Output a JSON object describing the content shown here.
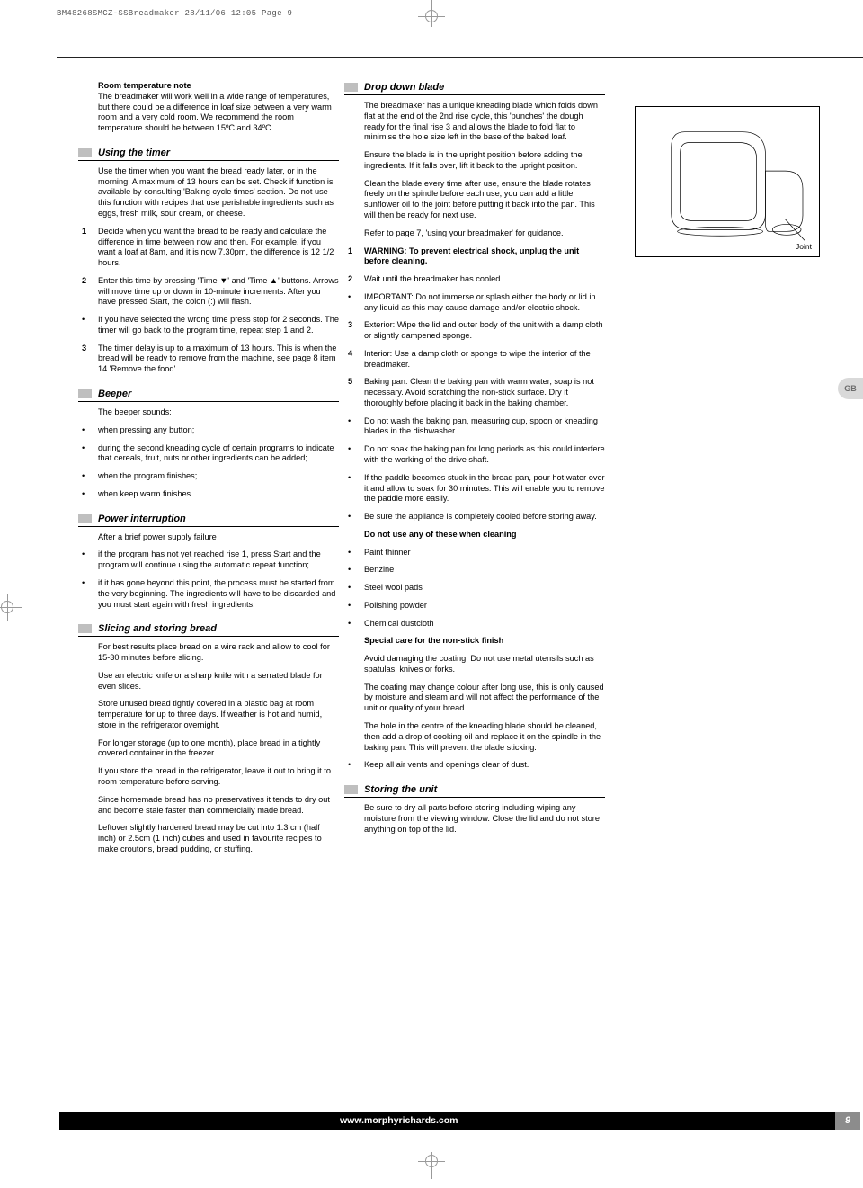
{
  "print_header": "BM48268SMCZ-SSBreadmaker  28/11/06  12:05  Page 9",
  "footer_url": "www.morphyrichards.com",
  "page_number": "9",
  "gb_tab": "GB",
  "diagram_label": "Joint",
  "col1": {
    "room_note_title": "Room temperature note",
    "room_note_body": "The breadmaker will work well in a wide range of temperatures, but there could be a difference in loaf size between a very warm room and a very cold room. We recommend the room temperature should be between 15ºC and 34ºC.",
    "sec_timer": "Using the timer",
    "timer_intro": "Use the timer when you want the bread ready later, or in the morning. A maximum of 13 hours can be set. Check if function is available by consulting 'Baking cycle times' section. Do not use this function with recipes that use perishable ingredients such as eggs, fresh milk, sour cream, or cheese.",
    "timer_items": [
      {
        "n": "1",
        "t": "Decide when you want the bread to be ready and calculate the difference in time between now and then. For example, if you want a loaf at 8am, and it is now 7.30pm, the difference is 12 1/2 hours."
      },
      {
        "n": "2",
        "t": "Enter this time by pressing 'Time ▼' and 'Time ▲' buttons. Arrows will move time up or down in 10-minute increments. After you have pressed Start, the colon (:) will flash."
      },
      {
        "n": "•",
        "t": "If you have selected the wrong time press stop for 2 seconds. The timer will go back to the program time, repeat step 1 and 2."
      },
      {
        "n": "3",
        "t": "The timer delay is up to a maximum of 13 hours. This is when the bread will be ready to remove from the machine, see page 8 item 14 'Remove the food'."
      }
    ],
    "sec_beeper": "Beeper",
    "beeper_intro": "The beeper sounds:",
    "beeper_items": [
      "when pressing any button;",
      "during the second kneading cycle of certain programs to indicate that cereals, fruit, nuts or other ingredients can be added;",
      "when the program finishes;",
      "when keep warm finishes."
    ],
    "sec_power": "Power interruption",
    "power_intro": "After a brief power supply failure",
    "power_items": [
      "if the program has not yet reached rise 1, press Start and the program will continue using the automatic repeat function;",
      "if it has gone beyond this point, the process must be started from the very beginning. The ingredients will have to be discarded and you must start again with fresh ingredients."
    ],
    "sec_slicing": "Slicing and storing bread",
    "slicing_paras": [
      "For best results place bread on a wire rack and allow to cool for 15-30 minutes before slicing.",
      "Use an electric knife or a sharp knife with a serrated blade for even slices.",
      "Store unused bread tightly covered in a plastic bag at room temperature for up to three days. If weather is hot and humid, store in the refrigerator overnight.",
      "For longer storage (up to one month), place bread in a tightly covered container in the freezer.",
      "If you store the bread in the refrigerator, leave it out to bring it to room temperature before serving.",
      "Since homemade bread has no preservatives it tends to dry out and become stale faster than commercially made bread.",
      "Leftover slightly hardened bread may be cut into 1.3 cm (half inch) or 2.5cm (1 inch) cubes and used in favourite recipes to make croutons, bread pudding, or stuffing."
    ]
  },
  "col2": {
    "sec_drop": "Drop down blade",
    "drop_paras": [
      "The breadmaker has a unique kneading blade which folds down flat at the end of the 2nd rise cycle, this 'punches' the dough ready for the final rise 3 and allows the blade to fold flat to minimise the hole size left in the base of the baked loaf.",
      "Ensure the blade is in the upright position before adding the ingredients. If it falls over, lift it back to the upright position.",
      "Clean the blade every time after use, ensure the blade rotates freely on the spindle before each use, you can add a little sunflower oil to the joint before putting it back into the pan. This will then be ready for next use.",
      "Refer to page 7, 'using your breadmaker' for guidance."
    ],
    "clean_items": [
      {
        "n": "1",
        "t": "WARNING: To prevent electrical shock, unplug the unit before cleaning.",
        "bold": true
      },
      {
        "n": "2",
        "t": "Wait until the breadmaker has cooled."
      },
      {
        "n": "•",
        "t": "IMPORTANT: Do not immerse or splash either the body or lid in any liquid as this may cause damage and/or electric shock."
      },
      {
        "n": "3",
        "t": "Exterior: Wipe the lid and outer body of the unit with a damp cloth or slightly dampened sponge."
      },
      {
        "n": "4",
        "t": "Interior: Use a damp cloth or sponge to wipe the interior of the breadmaker."
      },
      {
        "n": "5",
        "t": "Baking pan: Clean the baking pan with warm water, soap is not necessary. Avoid scratching the non-stick surface. Dry it thoroughly before placing it back in the baking chamber."
      },
      {
        "n": "•",
        "t": "Do not wash the baking pan, measuring cup, spoon or kneading blades in the dishwasher."
      },
      {
        "n": "•",
        "t": "Do not soak the baking pan for long periods as this could interfere with the working of the drive shaft."
      },
      {
        "n": "•",
        "t": "If the paddle becomes stuck in the bread pan, pour hot water over it and allow to soak for 30 minutes. This will enable you to remove the paddle more easily."
      },
      {
        "n": "•",
        "t": "Be sure the appliance is completely cooled before storing away."
      }
    ],
    "donot_title": "Do not use any of these when cleaning",
    "donot_items": [
      "Paint thinner",
      "Benzine",
      "Steel wool pads",
      "Polishing powder",
      "Chemical dustcloth"
    ],
    "special_title": "Special care for the non-stick finish",
    "special_paras": [
      "Avoid damaging the coating. Do not use metal utensils such as spatulas, knives or forks.",
      "The coating may change colour after long use, this is only caused by moisture and steam and will not affect the performance of the unit or quality of your bread.",
      "The hole in the centre of the kneading blade should be cleaned, then add a drop of cooking oil and replace it on the spindle in the baking pan. This will prevent the blade sticking."
    ],
    "special_bullet": "Keep all air vents and openings clear of dust.",
    "sec_storing": "Storing the unit",
    "storing_para": "Be sure to dry all parts before storing including wiping any moisture from the viewing window. Close the lid and do not store anything on top of the lid."
  }
}
